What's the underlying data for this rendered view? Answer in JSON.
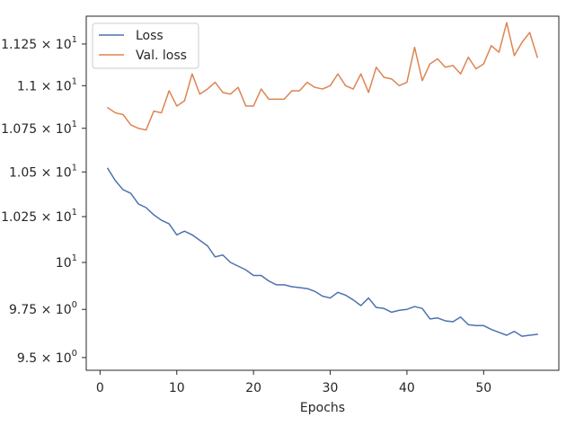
{
  "chart_data": {
    "type": "line",
    "title": "",
    "xlabel": "Epochs",
    "ylabel": "",
    "y_scale": "log",
    "grid": false,
    "legend_position": "top-left",
    "xlim": [
      -1.8,
      59.8
    ],
    "ylim": [
      9.435,
      11.42
    ],
    "x_ticks": [
      0,
      10,
      20,
      30,
      40,
      50
    ],
    "x_tick_labels": [
      "0",
      "10",
      "20",
      "30",
      "40",
      "50"
    ],
    "y_ticks": [
      9.5,
      9.75,
      10.0,
      10.25,
      10.5,
      10.75,
      11.0,
      11.25
    ],
    "y_tick_labels": [
      {
        "mantissa": "9.5",
        "base": "10",
        "exponent": "0"
      },
      {
        "mantissa": "9.75",
        "base": "10",
        "exponent": "0"
      },
      {
        "mantissa": "",
        "base": "10",
        "exponent": "1"
      },
      {
        "mantissa": "1.025",
        "base": "10",
        "exponent": "1"
      },
      {
        "mantissa": "1.05",
        "base": "10",
        "exponent": "1"
      },
      {
        "mantissa": "1.075",
        "base": "10",
        "exponent": "1"
      },
      {
        "mantissa": "1.1",
        "base": "10",
        "exponent": "1"
      },
      {
        "mantissa": "1.125",
        "base": "10",
        "exponent": "1"
      }
    ],
    "x": [
      1,
      2,
      3,
      4,
      5,
      6,
      7,
      8,
      9,
      10,
      11,
      12,
      13,
      14,
      15,
      16,
      17,
      18,
      19,
      20,
      21,
      22,
      23,
      24,
      25,
      26,
      27,
      28,
      29,
      30,
      31,
      32,
      33,
      34,
      35,
      36,
      37,
      38,
      39,
      40,
      41,
      42,
      43,
      44,
      45,
      46,
      47,
      48,
      49,
      50,
      51,
      52,
      53,
      54,
      55,
      56,
      57
    ],
    "series": [
      {
        "name": "Loss",
        "color": "#4c72b0",
        "values": [
          10.52,
          10.45,
          10.4,
          10.38,
          10.32,
          10.3,
          10.26,
          10.23,
          10.21,
          10.15,
          10.17,
          10.15,
          10.12,
          10.09,
          10.03,
          10.04,
          10.0,
          9.98,
          9.96,
          9.93,
          9.93,
          9.9,
          9.88,
          9.88,
          9.87,
          9.865,
          9.86,
          9.845,
          9.82,
          9.81,
          9.84,
          9.825,
          9.8,
          9.77,
          9.81,
          9.76,
          9.755,
          9.735,
          9.745,
          9.75,
          9.765,
          9.755,
          9.7,
          9.705,
          9.69,
          9.685,
          9.71,
          9.67,
          9.665,
          9.665,
          9.645,
          9.63,
          9.615,
          9.635,
          9.61,
          9.615,
          9.62
        ]
      },
      {
        "name": "Val. loss",
        "color": "#dd8452",
        "values": [
          10.87,
          10.84,
          10.83,
          10.77,
          10.75,
          10.74,
          10.85,
          10.84,
          10.97,
          10.88,
          10.91,
          11.07,
          10.95,
          10.98,
          11.02,
          10.96,
          10.95,
          10.99,
          10.88,
          10.88,
          10.98,
          10.92,
          10.92,
          10.92,
          10.97,
          10.97,
          11.02,
          10.99,
          10.98,
          11.0,
          11.07,
          11.0,
          10.98,
          11.07,
          10.96,
          11.11,
          11.05,
          11.04,
          11.0,
          11.02,
          11.23,
          11.03,
          11.13,
          11.16,
          11.11,
          11.12,
          11.07,
          11.17,
          11.1,
          11.13,
          11.24,
          11.2,
          11.38,
          11.18,
          11.26,
          11.32,
          11.17
        ]
      }
    ]
  }
}
